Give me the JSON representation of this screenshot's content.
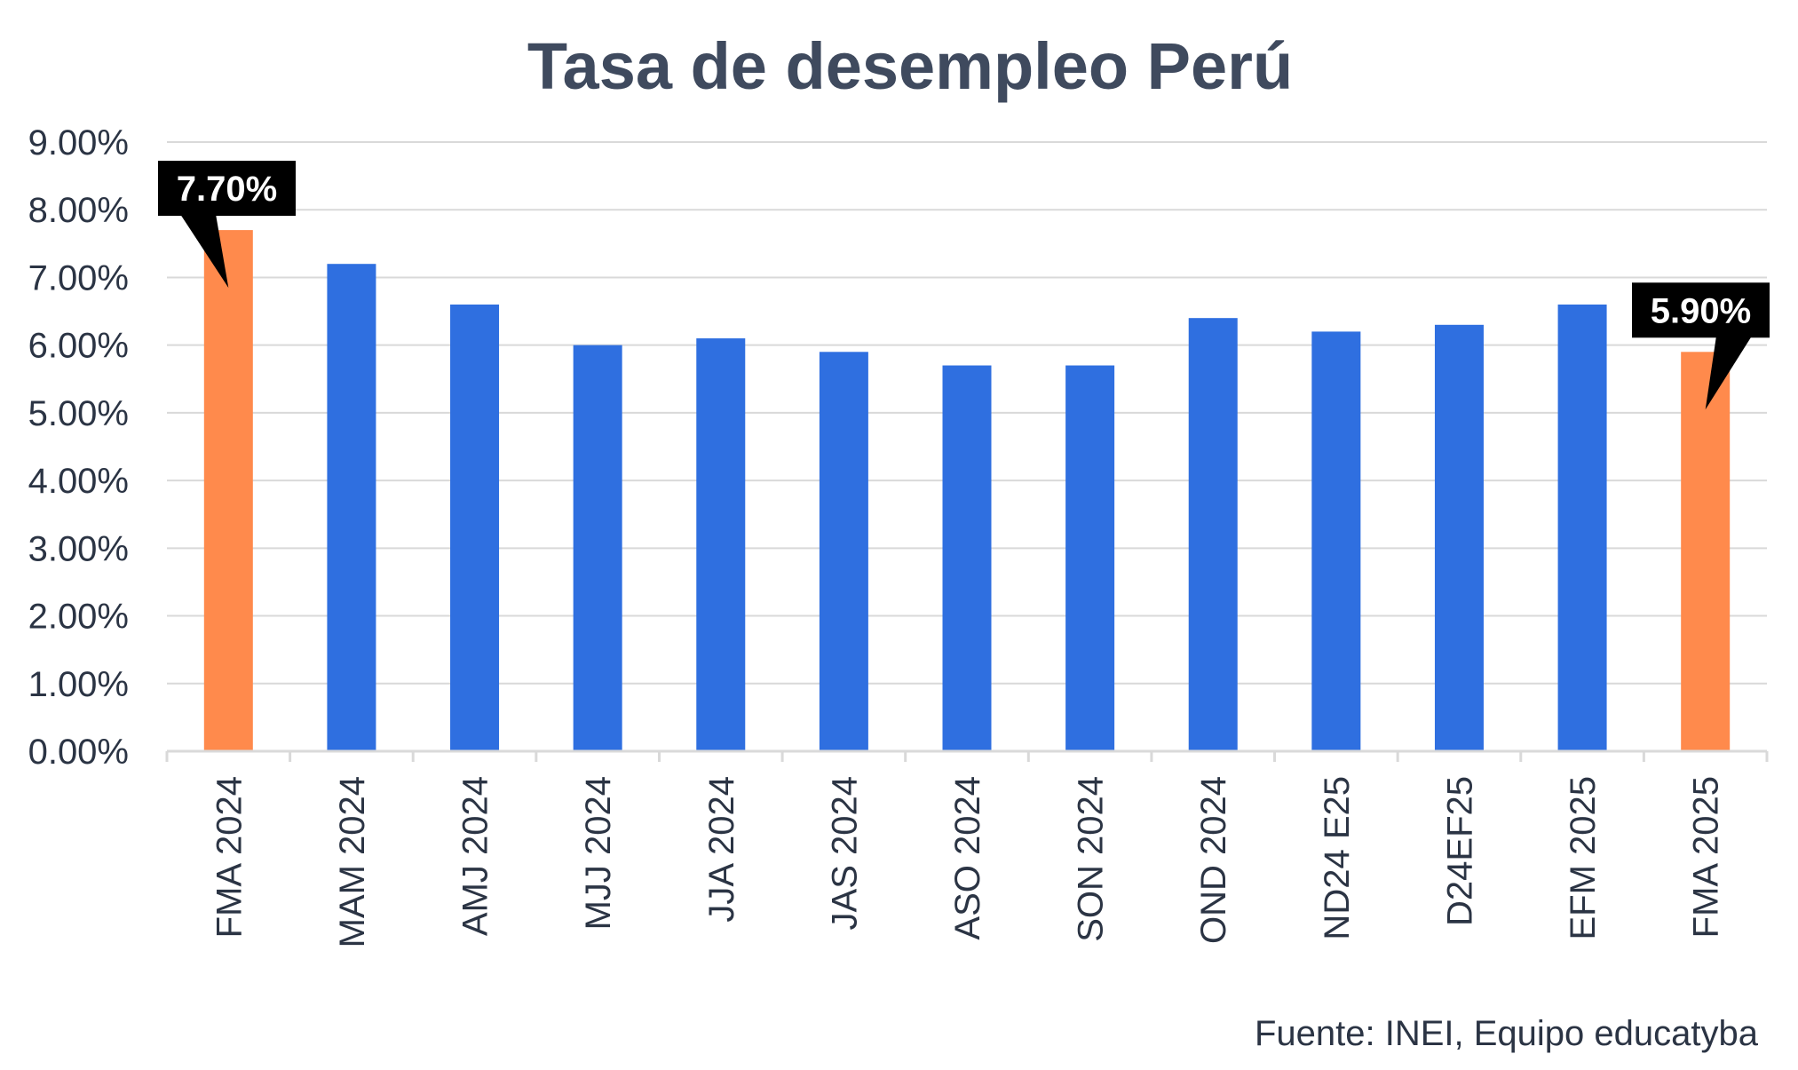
{
  "chart_data": {
    "type": "bar",
    "title": "Tasa de desempleo Perú",
    "source": "Fuente: INEI, Equipo educatyba",
    "categories": [
      "FMA 2024",
      "MAM 2024",
      "AMJ 2024",
      "MJJ 2024",
      "JJA 2024",
      "JAS 2024",
      "ASO 2024",
      "SON 2024",
      "OND 2024",
      "ND24 E25",
      "D24EF25",
      "EFM 2025",
      "FMA 2025"
    ],
    "values": [
      7.7,
      7.2,
      6.6,
      6.0,
      6.1,
      5.9,
      5.7,
      5.7,
      6.4,
      6.2,
      6.3,
      6.6,
      5.9
    ],
    "highlight_indices": [
      0,
      12
    ],
    "y_ticks": [
      "0.00%",
      "1.00%",
      "2.00%",
      "3.00%",
      "4.00%",
      "5.00%",
      "6.00%",
      "7.00%",
      "8.00%",
      "9.00%"
    ],
    "ylim": [
      0,
      9
    ],
    "grid": true,
    "callouts": [
      {
        "index": 0,
        "label": "7.70%"
      },
      {
        "index": 12,
        "label": "5.90%"
      }
    ],
    "colors": {
      "bar": "#2f6fe0",
      "highlight": "#ff8a4c",
      "title": "#3f4a5e",
      "text": "#2b3444",
      "grid": "#d9d9d9",
      "callout_bg": "#000000",
      "callout_text": "#ffffff"
    }
  }
}
